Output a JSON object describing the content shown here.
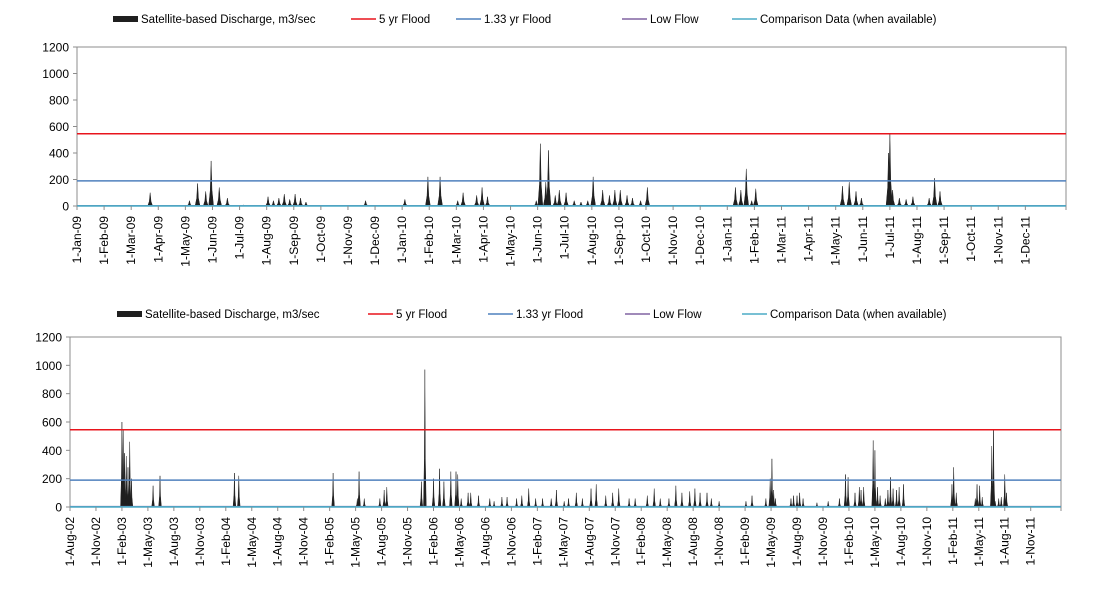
{
  "chart_data": [
    {
      "type": "area",
      "title": "",
      "xlabel": "",
      "ylabel": "",
      "ylim": [
        0,
        1200
      ],
      "yticks": [
        "0",
        "200",
        "400",
        "600",
        "800",
        "1000",
        "1200"
      ],
      "ytick_values": [
        0,
        200,
        400,
        600,
        800,
        1000,
        1200
      ],
      "xlim": [
        "2009-01-01",
        "2012-01-01"
      ],
      "xtick_labels": [
        "1-Jan-09",
        "1-Feb-09",
        "1-Mar-09",
        "1-Apr-09",
        "1-May-09",
        "1-Jun-09",
        "1-Jul-09",
        "1-Aug-09",
        "1-Sep-09",
        "1-Oct-09",
        "1-Nov-09",
        "1-Dec-09",
        "1-Jan-10",
        "1-Feb-10",
        "1-Mar-10",
        "1-Apr-10",
        "1-May-10",
        "1-Jun-10",
        "1-Jul-10",
        "1-Aug-10",
        "1-Sep-10",
        "1-Oct-10",
        "1-Nov-10",
        "1-Dec-10",
        "1-Jan-11",
        "1-Feb-11",
        "1-Mar-11",
        "1-Apr-11",
        "1-May-11",
        "1-Jun-11",
        "1-Jul-11",
        "1-Aug-11",
        "1-Sep-11",
        "1-Oct-11",
        "1-Nov-11",
        "1-Dec-11"
      ],
      "xtick_months_from_start": [
        0,
        1,
        2,
        3,
        4,
        5,
        6,
        7,
        8,
        9,
        10,
        11,
        12,
        13,
        14,
        15,
        16,
        17,
        18,
        19,
        20,
        21,
        22,
        23,
        24,
        25,
        26,
        27,
        28,
        29,
        30,
        31,
        32,
        33,
        34,
        35
      ],
      "grid": false,
      "legend_position": "top",
      "legend": [
        {
          "label": "Satellite-based Discharge, m3/sec",
          "kind": "area",
          "color": "#1f1f1f"
        },
        {
          "label": "5 yr Flood",
          "kind": "line",
          "color": "#e8141c"
        },
        {
          "label": "1.33 yr Flood",
          "kind": "line",
          "color": "#4f81bd"
        },
        {
          "label": "Low Flow",
          "kind": "line",
          "color": "#8064a2"
        },
        {
          "label": "Comparison Data (when available)",
          "kind": "line",
          "color": "#4bacc6"
        }
      ],
      "reference_lines": [
        {
          "name": "5 yr Flood",
          "value": 545,
          "color": "#e8141c"
        },
        {
          "name": "1.33 yr Flood",
          "value": 190,
          "color": "#4f81bd"
        },
        {
          "name": "Low Flow",
          "value": 3,
          "color": "#8064a2"
        },
        {
          "name": "Comparison Data (when available)",
          "value": 1,
          "color": "#4bacc6"
        }
      ],
      "series": [
        {
          "name": "Satellite-based Discharge, m3/sec",
          "color": "#1f1f1f",
          "peaks_months_value": [
            [
              2.7,
              100
            ],
            [
              4.15,
              40
            ],
            [
              4.45,
              170
            ],
            [
              4.75,
              110
            ],
            [
              4.95,
              340
            ],
            [
              5.25,
              140
            ],
            [
              5.55,
              60
            ],
            [
              6.15,
              8
            ],
            [
              7.05,
              70
            ],
            [
              7.25,
              40
            ],
            [
              7.45,
              60
            ],
            [
              7.65,
              90
            ],
            [
              7.85,
              50
            ],
            [
              8.05,
              90
            ],
            [
              8.25,
              60
            ],
            [
              8.45,
              30
            ],
            [
              10.65,
              40
            ],
            [
              12.1,
              50
            ],
            [
              12.95,
              220
            ],
            [
              13.4,
              220
            ],
            [
              14.05,
              40
            ],
            [
              14.25,
              100
            ],
            [
              14.75,
              80
            ],
            [
              14.95,
              140
            ],
            [
              15.15,
              70
            ],
            [
              16.95,
              40
            ],
            [
              17.1,
              470
            ],
            [
              17.3,
              180
            ],
            [
              17.4,
              420
            ],
            [
              17.65,
              80
            ],
            [
              17.8,
              120
            ],
            [
              18.05,
              100
            ],
            [
              18.35,
              40
            ],
            [
              18.6,
              30
            ],
            [
              18.85,
              40
            ],
            [
              19.05,
              220
            ],
            [
              19.4,
              120
            ],
            [
              19.65,
              80
            ],
            [
              19.85,
              120
            ],
            [
              20.05,
              120
            ],
            [
              20.3,
              80
            ],
            [
              20.5,
              60
            ],
            [
              20.8,
              40
            ],
            [
              21.05,
              140
            ],
            [
              24.3,
              140
            ],
            [
              24.5,
              120
            ],
            [
              24.7,
              280
            ],
            [
              25.05,
              130
            ],
            [
              28.25,
              150
            ],
            [
              28.5,
              180
            ],
            [
              28.75,
              110
            ],
            [
              28.95,
              60
            ],
            [
              29.95,
              400
            ],
            [
              30.0,
              550
            ],
            [
              30.1,
              120
            ],
            [
              30.35,
              60
            ],
            [
              30.6,
              50
            ],
            [
              30.85,
              70
            ],
            [
              31.45,
              60
            ],
            [
              31.65,
              210
            ],
            [
              31.85,
              110
            ],
            [
              27.35,
              6
            ],
            [
              6.55,
              6
            ],
            [
              24.9,
              40
            ],
            [
              8.85,
              5
            ]
          ]
        }
      ]
    },
    {
      "type": "area",
      "title": "",
      "xlabel": "",
      "ylabel": "",
      "ylim": [
        0,
        1200
      ],
      "yticks": [
        "0",
        "200",
        "400",
        "600",
        "800",
        "1000",
        "1200"
      ],
      "ytick_values": [
        0,
        200,
        400,
        600,
        800,
        1000,
        1200
      ],
      "xlim": [
        "2002-08-01",
        "2012-02-01"
      ],
      "xtick_labels": [
        "1-Aug-02",
        "1-Nov-02",
        "1-Feb-03",
        "1-May-03",
        "1-Aug-03",
        "1-Nov-03",
        "1-Feb-04",
        "1-May-04",
        "1-Aug-04",
        "1-Nov-04",
        "1-Feb-05",
        "1-May-05",
        "1-Aug-05",
        "1-Nov-05",
        "1-Feb-06",
        "1-May-06",
        "1-Aug-06",
        "1-Nov-06",
        "1-Feb-07",
        "1-May-07",
        "1-Aug-07",
        "1-Nov-07",
        "1-Feb-08",
        "1-May-08",
        "1-Aug-08",
        "1-Nov-08",
        "1-Feb-09",
        "1-May-09",
        "1-Aug-09",
        "1-Nov-09",
        "1-Feb-10",
        "1-May-10",
        "1-Aug-10",
        "1-Nov-10",
        "1-Feb-11",
        "1-May-11",
        "1-Aug-11",
        "1-Nov-11"
      ],
      "xtick_months_from_start": [
        0,
        3,
        6,
        9,
        12,
        15,
        18,
        21,
        24,
        27,
        30,
        33,
        36,
        39,
        42,
        45,
        48,
        51,
        54,
        57,
        60,
        63,
        66,
        69,
        72,
        75,
        78,
        81,
        84,
        87,
        90,
        93,
        96,
        99,
        102,
        105,
        108,
        111
      ],
      "grid": false,
      "legend_position": "top",
      "legend": [
        {
          "label": "Satellite-based Discharge, m3/sec",
          "kind": "area",
          "color": "#1f1f1f"
        },
        {
          "label": "5 yr Flood",
          "kind": "line",
          "color": "#e8141c"
        },
        {
          "label": "1.33 yr Flood",
          "kind": "line",
          "color": "#4f81bd"
        },
        {
          "label": "Low Flow",
          "kind": "line",
          "color": "#8064a2"
        },
        {
          "label": "Comparison Data (when available)",
          "kind": "line",
          "color": "#4bacc6"
        }
      ],
      "reference_lines": [
        {
          "name": "5 yr Flood",
          "value": 545,
          "color": "#e8141c"
        },
        {
          "name": "1.33 yr Flood",
          "value": 190,
          "color": "#4f81bd"
        },
        {
          "name": "Low Flow",
          "value": 3,
          "color": "#8064a2"
        },
        {
          "name": "Comparison Data (when available)",
          "value": 1,
          "color": "#4bacc6"
        }
      ],
      "series": [
        {
          "name": "Satellite-based Discharge, m3/sec",
          "color": "#1f1f1f",
          "peaks_months_value": [
            [
              6.0,
              600
            ],
            [
              6.15,
              540
            ],
            [
              6.3,
              380
            ],
            [
              6.5,
              360
            ],
            [
              6.7,
              280
            ],
            [
              6.9,
              460
            ],
            [
              7.1,
              200
            ],
            [
              9.6,
              150
            ],
            [
              10.4,
              220
            ],
            [
              19.0,
              240
            ],
            [
              19.5,
              220
            ],
            [
              30.4,
              240
            ],
            [
              33.2,
              60
            ],
            [
              33.4,
              250
            ],
            [
              34.0,
              60
            ],
            [
              35.8,
              60
            ],
            [
              36.3,
              120
            ],
            [
              36.6,
              140
            ],
            [
              40.6,
              180
            ],
            [
              41.0,
              970
            ],
            [
              42.0,
              200
            ],
            [
              42.7,
              270
            ],
            [
              43.2,
              180
            ],
            [
              44.0,
              250
            ],
            [
              44.6,
              250
            ],
            [
              44.8,
              230
            ],
            [
              45.2,
              60
            ],
            [
              46.0,
              100
            ],
            [
              46.3,
              100
            ],
            [
              47.2,
              80
            ],
            [
              48.5,
              60
            ],
            [
              49.0,
              40
            ],
            [
              49.9,
              70
            ],
            [
              50.5,
              70
            ],
            [
              51.6,
              60
            ],
            [
              52.2,
              80
            ],
            [
              53.0,
              130
            ],
            [
              53.8,
              60
            ],
            [
              54.6,
              60
            ],
            [
              55.6,
              60
            ],
            [
              56.2,
              120
            ],
            [
              57.1,
              40
            ],
            [
              57.6,
              60
            ],
            [
              58.5,
              100
            ],
            [
              59.2,
              60
            ],
            [
              60.2,
              130
            ],
            [
              60.8,
              160
            ],
            [
              61.9,
              80
            ],
            [
              62.7,
              100
            ],
            [
              63.4,
              130
            ],
            [
              64.6,
              60
            ],
            [
              65.3,
              60
            ],
            [
              66.7,
              80
            ],
            [
              67.5,
              130
            ],
            [
              68.2,
              60
            ],
            [
              69.2,
              60
            ],
            [
              70.0,
              150
            ],
            [
              70.7,
              100
            ],
            [
              71.6,
              110
            ],
            [
              72.2,
              130
            ],
            [
              72.8,
              100
            ],
            [
              73.6,
              100
            ],
            [
              74.1,
              60
            ],
            [
              75.0,
              40
            ],
            [
              78.1,
              40
            ],
            [
              78.8,
              80
            ],
            [
              80.4,
              60
            ],
            [
              80.9,
              200
            ],
            [
              81.1,
              340
            ],
            [
              81.3,
              120
            ],
            [
              81.5,
              60
            ],
            [
              83.3,
              60
            ],
            [
              83.6,
              80
            ],
            [
              84.0,
              80
            ],
            [
              84.3,
              100
            ],
            [
              84.7,
              60
            ],
            [
              86.3,
              30
            ],
            [
              87.6,
              40
            ],
            [
              88.9,
              60
            ],
            [
              89.6,
              230
            ],
            [
              89.9,
              210
            ],
            [
              90.7,
              100
            ],
            [
              91.2,
              140
            ],
            [
              91.4,
              120
            ],
            [
              91.7,
              140
            ],
            [
              92.8,
              470
            ],
            [
              93.0,
              400
            ],
            [
              93.3,
              140
            ],
            [
              93.6,
              80
            ],
            [
              94.2,
              60
            ],
            [
              94.5,
              120
            ],
            [
              94.8,
              210
            ],
            [
              95.1,
              130
            ],
            [
              95.5,
              120
            ],
            [
              95.8,
              140
            ],
            [
              96.3,
              160
            ],
            [
              101.9,
              160
            ],
            [
              102.1,
              280
            ],
            [
              102.4,
              100
            ],
            [
              104.6,
              60
            ],
            [
              104.8,
              160
            ],
            [
              105.1,
              150
            ],
            [
              105.4,
              70
            ],
            [
              106.5,
              430
            ],
            [
              106.7,
              550
            ],
            [
              106.9,
              40
            ],
            [
              107.3,
              60
            ],
            [
              107.6,
              70
            ],
            [
              108.0,
              230
            ],
            [
              108.2,
              100
            ]
          ]
        }
      ]
    }
  ]
}
